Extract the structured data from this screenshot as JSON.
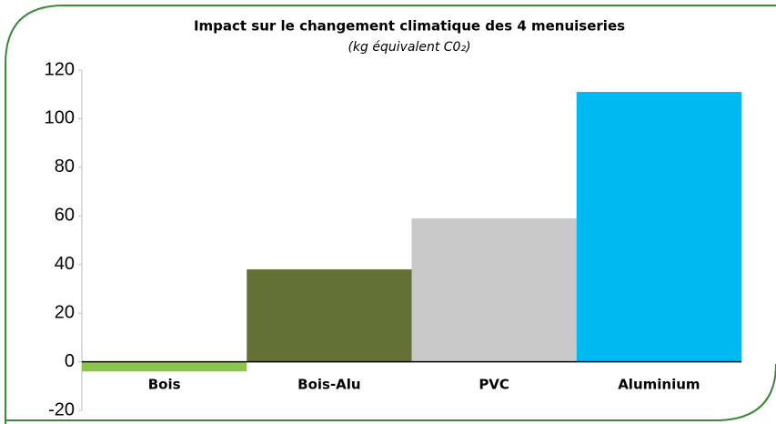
{
  "chart_data": {
    "type": "bar",
    "title": "Impact sur le changement climatique des 4 menuiseries",
    "subtitle": "(kg équivalent C0₂)",
    "categories": [
      "Bois",
      "Bois-Alu",
      "PVC",
      "Aluminium"
    ],
    "values": [
      -4,
      38,
      59,
      111
    ],
    "colors": [
      "#8dc44f",
      "#637136",
      "#c8c8c8",
      "#00b8f0"
    ],
    "ylim": [
      -20,
      120
    ],
    "yticks": [
      -20,
      0,
      20,
      40,
      60,
      80,
      100,
      120
    ]
  }
}
